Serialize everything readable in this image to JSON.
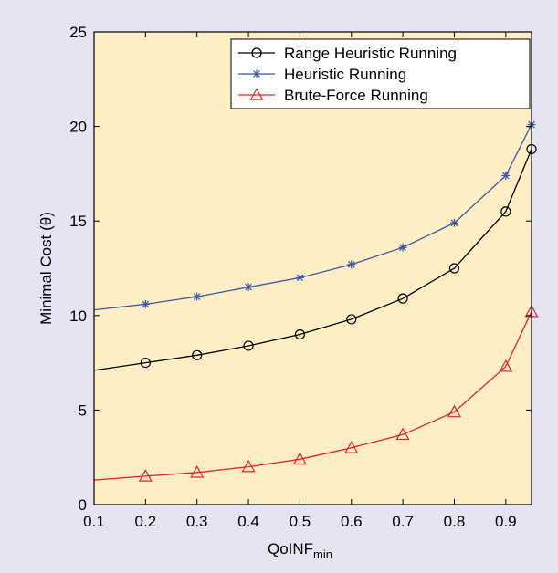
{
  "chart_data": {
    "type": "line",
    "title": "",
    "xlabel": "QoINF",
    "xlabel_sub": "min",
    "ylabel": "Minimal Cost (θ)",
    "xlim": [
      0.1,
      0.95
    ],
    "ylim": [
      0,
      25
    ],
    "xticks": [
      "0.1",
      "0.2",
      "0.3",
      "0.4",
      "0.5",
      "0.6",
      "0.7",
      "0.8",
      "0.9"
    ],
    "yticks": [
      "0",
      "5",
      "10",
      "15",
      "20",
      "25"
    ],
    "grid": false,
    "legend_position": "top-right",
    "background_color": "#fdeec4",
    "page_color": "#e6e4f2",
    "series": [
      {
        "name": "Range Heuristic Running",
        "marker": "circle",
        "color": "#000000",
        "x": [
          0.1,
          0.2,
          0.3,
          0.4,
          0.5,
          0.6,
          0.7,
          0.8,
          0.9,
          0.95
        ],
        "y": [
          7.1,
          7.5,
          7.9,
          8.4,
          9.0,
          9.8,
          10.9,
          12.5,
          15.5,
          18.8
        ],
        "marked": [
          false,
          true,
          true,
          true,
          true,
          true,
          true,
          true,
          true,
          true
        ]
      },
      {
        "name": "Heuristic Running",
        "marker": "star",
        "color": "#3a55a4",
        "x": [
          0.1,
          0.2,
          0.3,
          0.4,
          0.5,
          0.6,
          0.7,
          0.8,
          0.9,
          0.95
        ],
        "y": [
          10.3,
          10.6,
          11.0,
          11.5,
          12.0,
          12.7,
          13.6,
          14.9,
          17.4,
          20.1
        ],
        "marked": [
          false,
          true,
          true,
          true,
          true,
          true,
          true,
          true,
          true,
          true
        ]
      },
      {
        "name": "Brute-Force Running",
        "marker": "triangle",
        "color": "#e8212b",
        "x": [
          0.1,
          0.2,
          0.3,
          0.4,
          0.5,
          0.6,
          0.7,
          0.8,
          0.9,
          0.95
        ],
        "y": [
          1.3,
          1.5,
          1.7,
          2.0,
          2.4,
          3.0,
          3.7,
          4.9,
          7.3,
          10.2
        ],
        "marked": [
          false,
          true,
          true,
          true,
          true,
          true,
          true,
          true,
          true,
          true
        ]
      }
    ]
  }
}
